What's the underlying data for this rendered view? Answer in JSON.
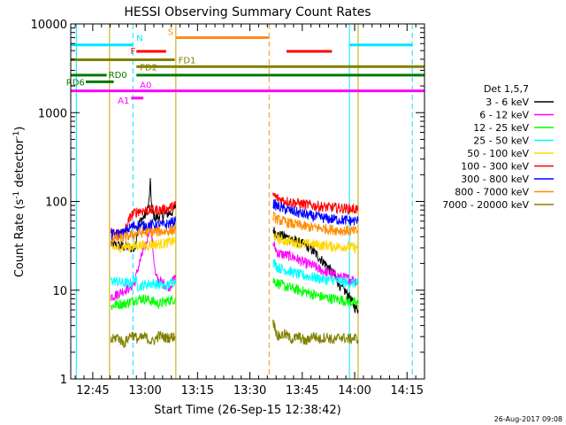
{
  "footer": {
    "timestamp": "26-Aug-2017 09:08"
  },
  "chart_data": {
    "type": "line",
    "title": "HESSI Observing Summary Count Rates",
    "xlabel": "Start Time (26-Sep-15 12:38:42)",
    "ylabel_main": "Count Rate (s",
    "ylabel_sup1": "-1",
    "ylabel_mid": " detector",
    "ylabel_sup2": "-1",
    "ylabel_end": ")",
    "yscale": "log",
    "ylim": [
      1,
      10000
    ],
    "xlim_minutes": [
      38.7,
      140
    ],
    "x_ticks": [
      {
        "t": 45,
        "label": "12:45"
      },
      {
        "t": 60,
        "label": "13:00"
      },
      {
        "t": 75,
        "label": "13:15"
      },
      {
        "t": 90,
        "label": "13:30"
      },
      {
        "t": 105,
        "label": "13:45"
      },
      {
        "t": 120,
        "label": "14:00"
      },
      {
        "t": 135,
        "label": "14:15"
      }
    ],
    "y_ticks": [
      {
        "v": 1,
        "label": "1"
      },
      {
        "v": 10,
        "label": "10"
      },
      {
        "v": 100,
        "label": "100"
      },
      {
        "v": 1000,
        "label": "1000"
      },
      {
        "v": 10000,
        "label": "10000"
      }
    ],
    "legend": {
      "title": "Det 1,5,7",
      "placement": "right",
      "entries": [
        {
          "label": "3 - 6 keV",
          "color": "#000000"
        },
        {
          "label": "6 - 12 keV",
          "color": "#ff00ff"
        },
        {
          "label": "12 - 25 keV",
          "color": "#00ff00"
        },
        {
          "label": "25 - 50 keV",
          "color": "#00ffff"
        },
        {
          "label": "50 - 100 keV",
          "color": "#ffd700"
        },
        {
          "label": "100 - 300 keV",
          "color": "#ff0000"
        },
        {
          "label": "300 - 800 keV",
          "color": "#0000ff"
        },
        {
          "label": "800 - 7000 keV",
          "color": "#ff8c00"
        },
        {
          "label": "7000 - 20000 keV",
          "color": "#808000"
        }
      ]
    },
    "intervals": [
      {
        "key": "N",
        "label": "N",
        "y": 5800,
        "color": "#00e5ff",
        "segments": [
          [
            38.7,
            56.5
          ],
          [
            118.5,
            136.5
          ]
        ]
      },
      {
        "key": "S",
        "label": "S",
        "y": 7000,
        "color": "#ff8c1a",
        "segments": [
          [
            68.8,
            95.5
          ]
        ]
      },
      {
        "key": "F",
        "label": "F",
        "y": 4900,
        "color": "#ff0000",
        "segments": [
          [
            57.5,
            66.0
          ],
          [
            100.5,
            113.5
          ]
        ]
      },
      {
        "key": "FD1",
        "label": "FD1",
        "y": 3950,
        "color": "#808000",
        "segments": [
          [
            38.7,
            68.5
          ]
        ]
      },
      {
        "key": "FD2",
        "label": "FD2",
        "y": 3300,
        "color": "#808000",
        "segments": [
          [
            57.5,
            140
          ]
        ]
      },
      {
        "key": "RD0",
        "label": "RD0",
        "y": 2650,
        "color": "#007700",
        "segments": [
          [
            38.7,
            49.0
          ],
          [
            57.5,
            140
          ]
        ]
      },
      {
        "key": "RD6",
        "label": "RD6",
        "y": 2230,
        "color": "#007700",
        "segments": [
          [
            43.0,
            51.0
          ]
        ]
      },
      {
        "key": "A0",
        "label": "A0",
        "y": 1760,
        "color": "#ff00ff",
        "segments": [
          [
            38.7,
            140
          ]
        ]
      },
      {
        "key": "A1",
        "label": "A1",
        "y": 1460,
        "color": "#ff00ff",
        "segments": [
          [
            56.0,
            59.5
          ]
        ]
      }
    ],
    "vertical_markers": [
      {
        "t": 40.3,
        "style": "solid",
        "color": "#00e5ff"
      },
      {
        "t": 49.8,
        "style": "solid",
        "color": "#c8a000"
      },
      {
        "t": 56.5,
        "style": "dashed",
        "color": "#00e5ff"
      },
      {
        "t": 68.8,
        "style": "solid",
        "color": "#c8a000"
      },
      {
        "t": 95.5,
        "style": "dashed",
        "color": "#ff8c1a"
      },
      {
        "t": 118.5,
        "style": "solid",
        "color": "#00e5ff"
      },
      {
        "t": 121.0,
        "style": "solid",
        "color": "#c8a000"
      },
      {
        "t": 136.5,
        "style": "dashed",
        "color": "#00e5ff"
      }
    ],
    "series": [
      {
        "name": "3 - 6 keV",
        "color": "#000000",
        "segments": [
          {
            "t": [
              50.2,
              52,
              54,
              56,
              57,
              58,
              60,
              61,
              61.5,
              62,
              63,
              64,
              65,
              66,
              67,
              68,
              68.7
            ],
            "v": [
              33,
              32,
              31,
              30,
              28,
              55,
              70,
              90,
              160,
              75,
              65,
              68,
              70,
              72,
              74,
              77,
              90
            ]
          },
          {
            "t": [
              96.6,
              98,
              100,
              102,
              104,
              106,
              108,
              110,
              112,
              114,
              116,
              118,
              120,
              121
            ],
            "v": [
              48,
              42,
              40,
              38,
              34,
              32,
              28,
              23,
              19,
              15,
              11,
              9,
              6.5,
              6
            ]
          }
        ]
      },
      {
        "name": "6 - 12 keV",
        "color": "#ff00ff",
        "segments": [
          {
            "t": [
              50.2,
              52,
              54,
              56,
              57,
              58,
              59.5,
              60.5,
              61.5,
              63,
              65,
              67,
              68.7
            ],
            "v": [
              8.5,
              9,
              10,
              11,
              12,
              18,
              28,
              35,
              60,
              14,
              12,
              11,
              14
            ]
          },
          {
            "t": [
              96.6,
              98,
              100,
              102,
              104,
              106,
              108,
              110,
              112,
              114,
              116,
              118,
              120,
              121
            ],
            "v": [
              34,
              26,
              25,
              24,
              22,
              20,
              19,
              17,
              16,
              15,
              14,
              13.5,
              13,
              12.5
            ]
          }
        ]
      },
      {
        "name": "12 - 25 keV",
        "color": "#00ff00",
        "segments": [
          {
            "t": [
              50.2,
              52,
              54,
              56,
              58,
              60,
              62,
              64,
              66,
              68.7
            ],
            "v": [
              6.5,
              7,
              7,
              7.5,
              8,
              8,
              7.5,
              7,
              7.5,
              8
            ]
          },
          {
            "t": [
              96.6,
              98,
              100,
              102,
              104,
              106,
              108,
              110,
              112,
              114,
              116,
              118,
              120,
              121
            ],
            "v": [
              13,
              12,
              11,
              10.5,
              10,
              9.5,
              9,
              8.5,
              8.2,
              8,
              7.8,
              7.5,
              7.2,
              7
            ]
          }
        ]
      },
      {
        "name": "25 - 50 keV",
        "color": "#00ffff",
        "segments": [
          {
            "t": [
              50.2,
              52,
              54,
              56,
              57,
              58,
              60,
              62,
              64,
              66,
              68.7
            ],
            "v": [
              13,
              12.5,
              12,
              12,
              14,
              11,
              11.5,
              12,
              11.5,
              11,
              13
            ]
          },
          {
            "t": [
              96.6,
              98,
              100,
              102,
              104,
              106,
              108,
              110,
              112,
              114,
              116,
              118,
              120,
              121
            ],
            "v": [
              21,
              18,
              17,
              16,
              15,
              14.5,
              14,
              13.5,
              13,
              13,
              12.5,
              12,
              12,
              12
            ]
          }
        ]
      },
      {
        "name": "50 - 100 keV",
        "color": "#ffd700",
        "segments": [
          {
            "t": [
              50.2,
              52,
              54,
              56,
              58,
              60,
              62,
              64,
              66,
              68.7
            ],
            "v": [
              30,
              30,
              31,
              31,
              32,
              32,
              33,
              33,
              34,
              36
            ]
          },
          {
            "t": [
              96.6,
              98,
              100,
              102,
              104,
              106,
              108,
              110,
              112,
              114,
              116,
              118,
              120,
              121
            ],
            "v": [
              42,
              38,
              36,
              35,
              34,
              33,
              33,
              32,
              32,
              31,
              31,
              31,
              30,
              30
            ]
          }
        ]
      },
      {
        "name": "100 - 300 keV",
        "color": "#ff0000",
        "segments": [
          {
            "t": [
              50.2,
              52,
              54,
              56,
              58,
              60,
              62,
              64,
              66,
              68.7
            ],
            "v": [
              44,
              44,
              45,
              70,
              78,
              79,
              80,
              80,
              82,
              90
            ]
          },
          {
            "t": [
              96.6,
              98,
              100,
              102,
              104,
              106,
              108,
              110,
              112,
              114,
              116,
              118,
              120,
              121
            ],
            "v": [
              120,
              108,
              102,
              98,
              95,
              92,
              90,
              88,
              86,
              85,
              84,
              83,
              82,
              82
            ]
          }
        ]
      },
      {
        "name": "300 - 800 keV",
        "color": "#0000ff",
        "segments": [
          {
            "t": [
              50.2,
              52,
              54,
              56,
              58,
              60,
              62,
              64,
              66,
              68.7
            ],
            "v": [
              42,
              43,
              44,
              52,
              54,
              53,
              55,
              54,
              55,
              60
            ]
          },
          {
            "t": [
              96.6,
              98,
              100,
              102,
              104,
              106,
              108,
              110,
              112,
              114,
              116,
              118,
              120,
              121
            ],
            "v": [
              95,
              88,
              82,
              78,
              74,
              71,
              68,
              66,
              64,
              63,
              62,
              61,
              60,
              60
            ]
          }
        ]
      },
      {
        "name": "800 - 7000 keV",
        "color": "#ff8c00",
        "segments": [
          {
            "t": [
              50.2,
              52,
              54,
              56,
              58,
              60,
              62,
              64,
              66,
              68.7
            ],
            "v": [
              38,
              38,
              39,
              42,
              44,
              45,
              45,
              46,
              46,
              48
            ]
          },
          {
            "t": [
              96.6,
              98,
              100,
              102,
              104,
              106,
              108,
              110,
              112,
              114,
              116,
              118,
              120,
              121
            ],
            "v": [
              68,
              62,
              59,
              56,
              54,
              52,
              51,
              50,
              49,
              48,
              47,
              47,
              46,
              46
            ]
          }
        ]
      },
      {
        "name": "7000 - 20000 keV",
        "color": "#808000",
        "segments": [
          {
            "t": [
              50.2,
              52,
              54,
              56,
              58,
              60,
              62,
              64,
              66,
              68.7
            ],
            "v": [
              2.7,
              3.0,
              2.5,
              3.2,
              2.8,
              3.0,
              2.6,
              3.1,
              2.9,
              3.0
            ]
          },
          {
            "t": [
              96.6,
              98,
              100,
              102,
              104,
              106,
              108,
              110,
              112,
              114,
              116,
              118,
              120,
              121
            ],
            "v": [
              4.5,
              3.0,
              3.2,
              2.8,
              3.0,
              2.6,
              3.1,
              2.8,
              3.0,
              2.7,
              3.0,
              2.8,
              2.9,
              2.8
            ]
          }
        ]
      }
    ]
  }
}
